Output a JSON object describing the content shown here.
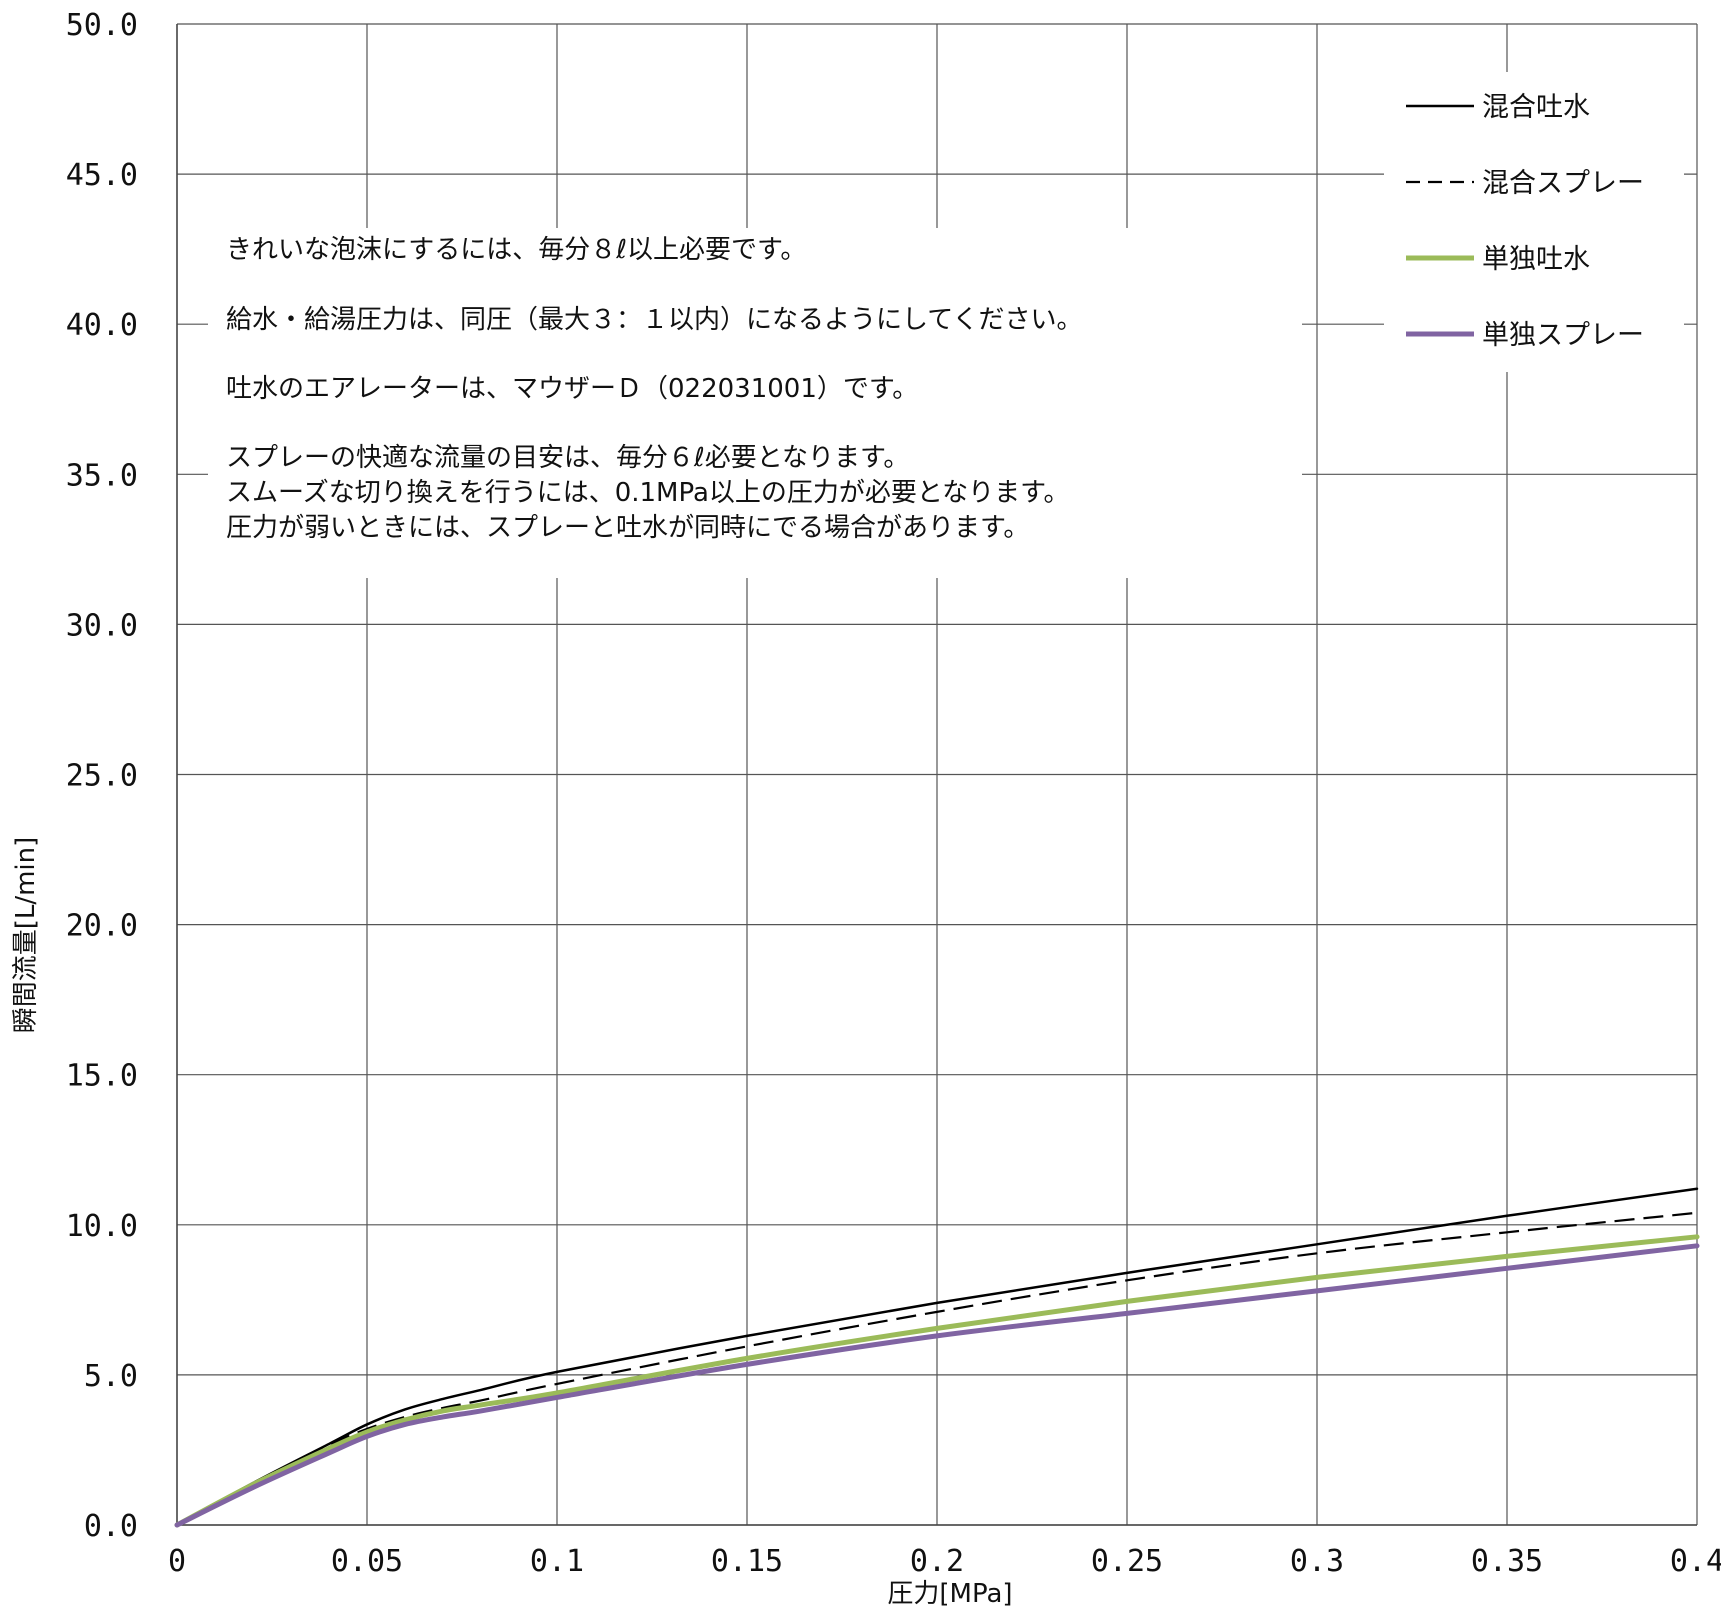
{
  "chart_data": {
    "type": "line",
    "xlabel": "圧力[MPa]",
    "ylabel": "瞬間流量[L/min]",
    "xlim": [
      0,
      0.4
    ],
    "ylim": [
      0,
      50
    ],
    "x_ticks": [
      "0",
      "0.05",
      "0.1",
      "0.15",
      "0.2",
      "0.25",
      "0.3",
      "0.35",
      "0.4"
    ],
    "y_ticks": [
      "0.0",
      "5.0",
      "10.0",
      "15.0",
      "20.0",
      "25.0",
      "30.0",
      "35.0",
      "40.0",
      "45.0",
      "50.0"
    ],
    "grid": true,
    "legend_position": "top-right",
    "series": [
      {
        "name": "混合吐水",
        "color": "#000000",
        "style": "solid",
        "x": [
          0,
          0.02,
          0.04,
          0.05,
          0.06,
          0.07,
          0.08,
          0.1,
          0.15,
          0.2,
          0.25,
          0.3,
          0.35,
          0.4
        ],
        "y": [
          0,
          1.4,
          2.7,
          3.35,
          3.85,
          4.2,
          4.5,
          5.1,
          6.3,
          7.4,
          8.4,
          9.35,
          10.3,
          11.2
        ]
      },
      {
        "name": "混合スプレー",
        "color": "#000000",
        "style": "dashed",
        "x": [
          0,
          0.02,
          0.04,
          0.05,
          0.06,
          0.07,
          0.08,
          0.1,
          0.15,
          0.2,
          0.25,
          0.3,
          0.35,
          0.4
        ],
        "y": [
          0,
          1.35,
          2.65,
          3.2,
          3.6,
          3.9,
          4.15,
          4.7,
          5.95,
          7.1,
          8.15,
          9.05,
          9.75,
          10.4
        ]
      },
      {
        "name": "単独吐水",
        "color": "#9bbb59",
        "style": "solid",
        "x": [
          0,
          0.02,
          0.04,
          0.05,
          0.06,
          0.07,
          0.08,
          0.1,
          0.15,
          0.2,
          0.25,
          0.3,
          0.35,
          0.4
        ],
        "y": [
          0,
          1.35,
          2.55,
          3.1,
          3.5,
          3.8,
          4.0,
          4.4,
          5.55,
          6.55,
          7.45,
          8.25,
          8.95,
          9.6
        ]
      },
      {
        "name": "単独スプレー",
        "color": "#8064a2",
        "style": "solid",
        "x": [
          0,
          0.02,
          0.04,
          0.05,
          0.06,
          0.07,
          0.08,
          0.1,
          0.15,
          0.2,
          0.25,
          0.3,
          0.35,
          0.4
        ],
        "y": [
          0,
          1.25,
          2.4,
          2.95,
          3.35,
          3.6,
          3.8,
          4.25,
          5.35,
          6.3,
          7.05,
          7.8,
          8.55,
          9.3
        ]
      }
    ],
    "annotations": [
      "きれいな泡沫にするには、毎分８ℓ以上必要です。",
      "給水・給湯圧力は、同圧（最大３：１以内）になるようにしてください。",
      "吐水のエアレーターは、マウザーＤ（022031001）です。",
      "スプレーの快適な流量の目安は、毎分６ℓ必要となります。",
      "スムーズな切り換えを行うには、0.1MPa以上の圧力が必要となります。",
      "圧力が弱いときには、スプレーと吐水が同時にでる場合があります。"
    ]
  }
}
